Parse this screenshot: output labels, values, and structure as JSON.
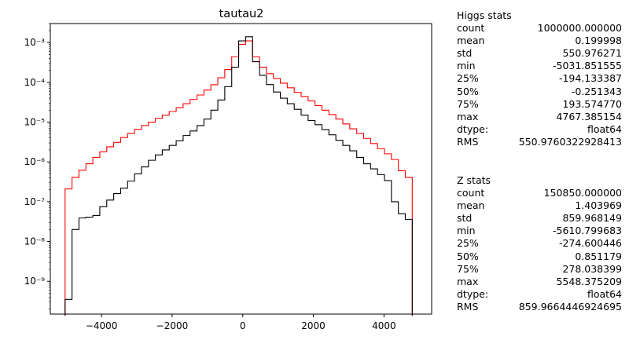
{
  "chart_data": {
    "type": "step-histogram",
    "title": "tautau2",
    "xlabel": "",
    "ylabel": "",
    "yscale": "log",
    "xlim": [
      -5450,
      5350
    ],
    "ylim": [
      1.5e-10,
      0.003
    ],
    "x_ticks": [
      {
        "value": -4000,
        "label": "−4000"
      },
      {
        "value": -2000,
        "label": "−2000"
      },
      {
        "value": 0,
        "label": "0"
      },
      {
        "value": 2000,
        "label": "2000"
      },
      {
        "value": 4000,
        "label": "4000"
      }
    ],
    "y_ticks": [
      {
        "exp": -3,
        "label": "10⁻³"
      },
      {
        "exp": -4,
        "label": "10⁻⁴"
      },
      {
        "exp": -5,
        "label": "10⁻⁵"
      },
      {
        "exp": -6,
        "label": "10⁻⁶"
      },
      {
        "exp": -7,
        "label": "10⁻⁷"
      },
      {
        "exp": -8,
        "label": "10⁻⁸"
      },
      {
        "exp": -9,
        "label": "10⁻⁹"
      }
    ],
    "bin_edges": [
      -5031.85,
      -4835.2,
      -4638.55,
      -4441.9,
      -4245.25,
      -4048.6,
      -3851.95,
      -3655.3,
      -3458.65,
      -3262.0,
      -3065.35,
      -2868.7,
      -2672.05,
      -2475.4,
      -2278.75,
      -2082.1,
      -1885.45,
      -1688.8,
      -1492.15,
      -1295.5,
      -1098.85,
      -902.2,
      -705.55,
      -508.9,
      -312.25,
      -115.6,
      81.05,
      277.7,
      474.35,
      671.0,
      867.65,
      1064.3,
      1260.95,
      1457.6,
      1654.25,
      1850.9,
      2047.55,
      2244.2,
      2440.85,
      2637.5,
      2834.15,
      3030.8,
      3227.45,
      3424.1,
      3620.75,
      3817.4,
      4014.05,
      4210.7,
      4407.35,
      4604.0,
      4800.65
    ],
    "series": [
      {
        "color": "#ff0000",
        "values": [
          2.1e-07,
          4.1e-07,
          6.2e-07,
          9e-07,
          1.3e-06,
          1.8e-06,
          2.4e-06,
          3.1e-06,
          4.1e-06,
          5.2e-06,
          6.6e-06,
          8.2e-06,
          1e-05,
          1.25e-05,
          1.5e-05,
          1.85e-05,
          2.3e-05,
          2.9e-05,
          3.7e-05,
          4.8e-05,
          6.4e-05,
          8.7e-05,
          0.00013,
          0.00021,
          0.00044,
          0.0009,
          0.0011,
          0.00044,
          0.00024,
          0.000165,
          0.000125,
          9.5e-05,
          7.3e-05,
          5.6e-05,
          4.4e-05,
          3.4e-05,
          2.6e-05,
          2e-05,
          1.55e-05,
          1.2e-05,
          9e-06,
          6.8e-06,
          5.2e-06,
          3.9e-06,
          2.9e-06,
          2.15e-06,
          1.6e-06,
          1.15e-06,
          6e-07,
          4.1e-07
        ]
      },
      {
        "color": "#000000",
        "values": [
          3.5e-10,
          2e-08,
          3.9e-08,
          4.1e-08,
          4.5e-08,
          7.5e-08,
          1.1e-07,
          1.6e-07,
          2.2e-07,
          3.3e-07,
          5e-07,
          7.5e-07,
          1.1e-06,
          1.5e-06,
          2e-06,
          2.6e-06,
          3.4e-06,
          4.6e-06,
          6e-06,
          8.2e-06,
          1.2e-05,
          2e-05,
          3.6e-05,
          7.8e-05,
          0.00024,
          0.0011,
          0.0014,
          0.00033,
          0.00015,
          8.8e-05,
          5.7e-05,
          4e-05,
          2.9e-05,
          2.1e-05,
          1.5e-05,
          1.1e-05,
          8.6e-06,
          6.5e-06,
          4.8e-06,
          3.5e-06,
          2.6e-06,
          1.9e-06,
          1.3e-06,
          9e-07,
          6.7e-07,
          4.8e-07,
          3.4e-07,
          1e-07,
          5e-08,
          3.6e-08
        ]
      }
    ]
  },
  "stats_tables": [
    {
      "header": "Higgs stats",
      "rows": [
        {
          "k": "count",
          "v": "1000000.000000"
        },
        {
          "k": "mean",
          "v": "0.199998"
        },
        {
          "k": "std",
          "v": "550.976271"
        },
        {
          "k": "min",
          "v": "-5031.851555"
        },
        {
          "k": "25%",
          "v": "-194.133387"
        },
        {
          "k": "50%",
          "v": "-0.251343"
        },
        {
          "k": "75%",
          "v": "193.574770"
        },
        {
          "k": "max",
          "v": "4767.385154"
        },
        {
          "k": "dtype:",
          "v": "float64"
        },
        {
          "k": "RMS",
          "v": "550.9760322928413"
        }
      ]
    },
    {
      "header": "Z stats",
      "rows": [
        {
          "k": "count",
          "v": "150850.000000"
        },
        {
          "k": "mean",
          "v": "1.403969"
        },
        {
          "k": "std",
          "v": "859.968149"
        },
        {
          "k": "min",
          "v": "-5610.799683"
        },
        {
          "k": "25%",
          "v": "-274.600446"
        },
        {
          "k": "50%",
          "v": "0.851179"
        },
        {
          "k": "75%",
          "v": "278.038399"
        },
        {
          "k": "max",
          "v": "5548.375209"
        },
        {
          "k": "dtype:",
          "v": "float64"
        },
        {
          "k": "RMS",
          "v": "859.9664446924695"
        }
      ]
    }
  ]
}
